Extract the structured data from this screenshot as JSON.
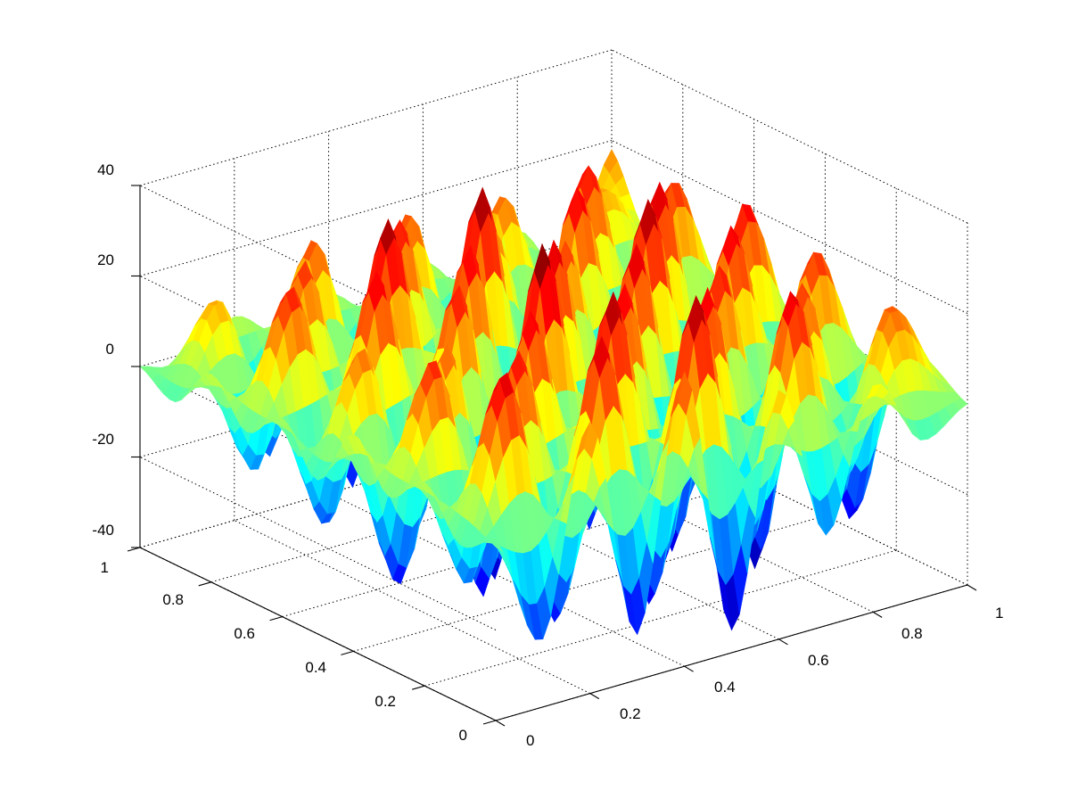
{
  "chart_data": {
    "type": "surface",
    "title": "",
    "xlabel": "",
    "ylabel": "",
    "zlabel": "",
    "xlim": [
      0,
      1
    ],
    "ylim": [
      0,
      1
    ],
    "zlim": [
      -40,
      40
    ],
    "x_ticks": [
      "0",
      "0.2",
      "0.4",
      "0.6",
      "0.8",
      "1"
    ],
    "y_ticks": [
      "0",
      "0.2",
      "0.4",
      "0.6",
      "0.8",
      "1"
    ],
    "z_ticks": [
      "-40",
      "-20",
      "0",
      "20",
      "40"
    ],
    "grid": true,
    "colormap": "jet",
    "colors": [
      "#00008f",
      "#0000ff",
      "#00ffff",
      "#ffff00",
      "#ff0000",
      "#800000"
    ],
    "x": [
      0,
      0.1,
      0.2,
      0.3,
      0.4,
      0.5,
      0.6,
      0.7,
      0.8,
      0.9,
      1.0
    ],
    "y": [
      0,
      0.1,
      0.2,
      0.3,
      0.4,
      0.5,
      0.6,
      0.7,
      0.8,
      0.9,
      1.0
    ],
    "z": [
      [
        0,
        -25,
        20,
        -30,
        25,
        -35,
        15,
        -20,
        10,
        -5,
        0
      ],
      [
        -5,
        30,
        -28,
        32,
        -30,
        35,
        -25,
        30,
        -15,
        20,
        5
      ],
      [
        5,
        -20,
        28,
        -25,
        35,
        -30,
        30,
        -35,
        25,
        -30,
        8
      ],
      [
        -2,
        25,
        -30,
        30,
        -25,
        30,
        -32,
        28,
        -20,
        25,
        -3
      ],
      [
        8,
        -28,
        22,
        -33,
        38,
        -28,
        32,
        -30,
        30,
        -22,
        6
      ],
      [
        -6,
        20,
        -25,
        28,
        -35,
        32,
        -28,
        35,
        -25,
        28,
        -4
      ],
      [
        4,
        -22,
        30,
        -20,
        30,
        -30,
        25,
        -28,
        32,
        -30,
        7
      ],
      [
        -3,
        26,
        -20,
        35,
        -25,
        36,
        -30,
        30,
        -22,
        25,
        -2
      ],
      [
        6,
        -18,
        25,
        -28,
        28,
        -25,
        20,
        -25,
        28,
        -20,
        10
      ],
      [
        -4,
        15,
        -22,
        22,
        -20,
        22,
        -18,
        20,
        -15,
        15,
        3
      ],
      [
        0,
        -3,
        5,
        -2,
        4,
        -3,
        5,
        -4,
        6,
        -5,
        18
      ]
    ]
  }
}
